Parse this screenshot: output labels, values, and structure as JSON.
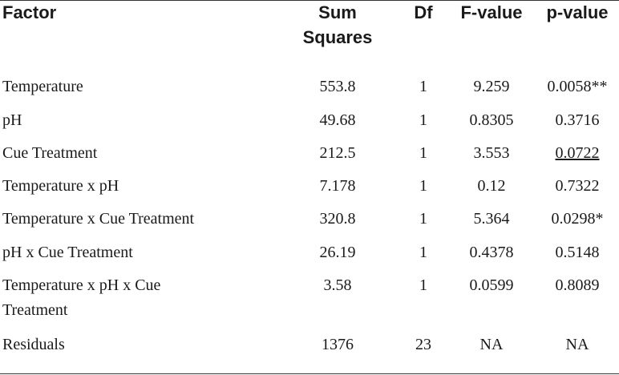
{
  "table": {
    "headers": {
      "factor": "Factor",
      "sum_squares": [
        "Sum",
        "Squares"
      ],
      "df": "Df",
      "f_value": "F-value",
      "p_value": "p-value"
    },
    "rows": [
      {
        "factor": [
          "Temperature"
        ],
        "sum_squares": "553.8",
        "df": "1",
        "f_value": "9.259",
        "p_value": "0.0058**"
      },
      {
        "factor": [
          "pH"
        ],
        "sum_squares": "49.68",
        "df": "1",
        "f_value": "0.8305",
        "p_value": "0.3716"
      },
      {
        "factor": [
          "Cue Treatment"
        ],
        "sum_squares": "212.5",
        "df": "1",
        "f_value": "3.553",
        "p_value": "0.0722",
        "p_underlined": true
      },
      {
        "factor": [
          "Temperature x pH"
        ],
        "sum_squares": "7.178",
        "df": "1",
        "f_value": "0.12",
        "p_value": "0.7322"
      },
      {
        "factor": [
          "Temperature x Cue Treatment"
        ],
        "sum_squares": "320.8",
        "df": "1",
        "f_value": "5.364",
        "p_value": "0.0298*"
      },
      {
        "factor": [
          "pH x Cue Treatment"
        ],
        "sum_squares": "26.19",
        "df": "1",
        "f_value": "0.4378",
        "p_value": "0.5148"
      },
      {
        "factor": [
          "Temperature x pH x Cue",
          "Treatment"
        ],
        "sum_squares": "3.58",
        "df": "1",
        "f_value": "0.0599",
        "p_value": "0.8089"
      },
      {
        "factor": [
          "Residuals"
        ],
        "sum_squares": "1376",
        "df": "23",
        "f_value": "NA",
        "p_value": "NA"
      }
    ]
  }
}
